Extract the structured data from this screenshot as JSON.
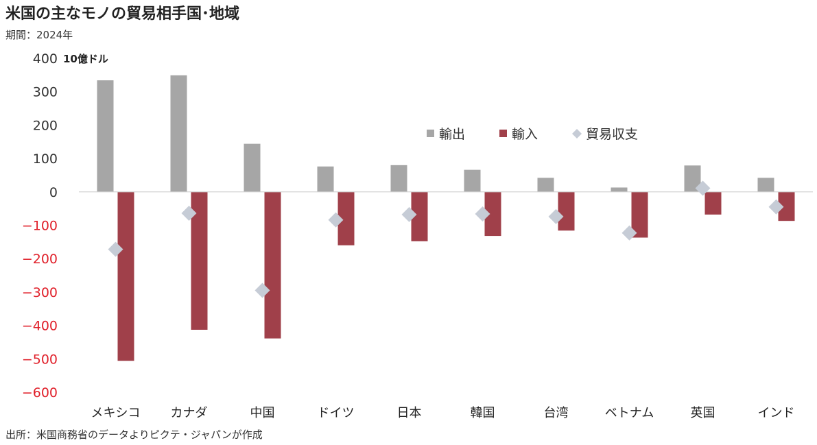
{
  "header": {
    "title": "米国の主なモノの貿易相手国･地域",
    "period": "期間：2024年"
  },
  "footer": {
    "source": "出所：米国商務省のデータよりピクテ・ジャパンが作成"
  },
  "chart_data": {
    "type": "bar",
    "unit_label": "10億ドル",
    "categories": [
      "メキシコ",
      "カナダ",
      "中国",
      "ドイツ",
      "日本",
      "韓国",
      "台湾",
      "ベトナム",
      "英国",
      "インド"
    ],
    "series": [
      {
        "name": "輸出",
        "kind": "bar",
        "color": "#a6a6a6",
        "values": [
          334,
          349,
          144,
          76,
          80,
          66,
          42,
          13,
          79,
          42
        ]
      },
      {
        "name": "輸入",
        "kind": "bar",
        "color": "#a0404a",
        "values": [
          -506,
          -413,
          -439,
          -160,
          -148,
          -132,
          -116,
          -137,
          -68,
          -87
        ]
      },
      {
        "name": "貿易収支",
        "kind": "marker-diamond",
        "color": "#c6ccd6",
        "values": [
          -172,
          -64,
          -295,
          -84,
          -68,
          -66,
          -74,
          -123,
          11,
          -45
        ]
      }
    ],
    "ylim": [
      -600,
      400
    ],
    "yticks": [
      400,
      300,
      200,
      100,
      0,
      -100,
      -200,
      -300,
      -400,
      -500,
      -600
    ],
    "negative_tick_color": "#e0202a",
    "legend_position": "upper-right",
    "grid": false
  }
}
